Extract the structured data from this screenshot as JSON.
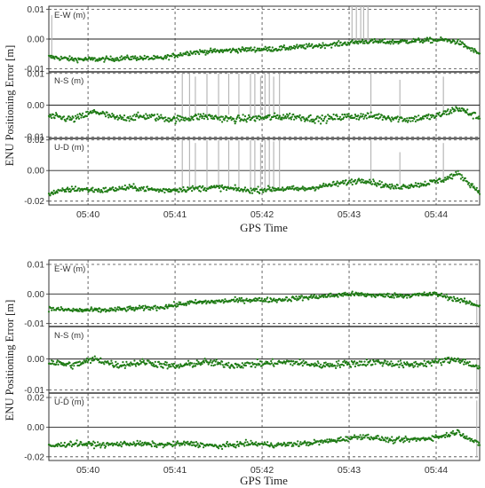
{
  "chart_data": [
    {
      "type": "scatter",
      "xlabel": "GPS Time",
      "ylabel": "ENU Positioning Error [m]",
      "x_range": [
        "05:39:33",
        "05:44:30"
      ],
      "x_ticks": [
        "05:40",
        "05:41",
        "05:42",
        "05:43",
        "05:44"
      ],
      "grid": "dashed",
      "colors": {
        "points": "#1e7a14",
        "outliers": "#b8b8b8"
      },
      "panels": [
        {
          "label": "E-W (m)",
          "ylim": [
            -0.011,
            0.011
          ],
          "y_ticks": [
            "0.01",
            "0.00",
            "-0.01"
          ],
          "trend": {
            "t": [
              "05:39:33",
              "05:39:50",
              "05:40:10",
              "05:40:30",
              "05:40:50",
              "05:41:10",
              "05:41:30",
              "05:41:50",
              "05:42:10",
              "05:42:30",
              "05:42:50",
              "05:43:10",
              "05:43:30",
              "05:43:50",
              "05:44:05",
              "05:44:15",
              "05:44:30"
            ],
            "value": [
              -0.006,
              -0.0068,
              -0.0068,
              -0.0063,
              -0.0065,
              -0.0045,
              -0.004,
              -0.0035,
              -0.0033,
              -0.0025,
              -0.0018,
              -0.0008,
              -0.001,
              -0.0005,
              -0.0003,
              -0.001,
              -0.005
            ]
          },
          "noise": 0.0008,
          "outliers": [
            {
              "t": "05:39:35",
              "from": -0.006,
              "to": 0.008
            },
            {
              "t": "05:43:02",
              "from": 0.0,
              "to": 0.011
            },
            {
              "t": "05:43:05",
              "from": -0.001,
              "to": 0.011
            },
            {
              "t": "05:43:08",
              "from": -0.001,
              "to": 0.011
            },
            {
              "t": "05:43:10",
              "from": 0.0,
              "to": 0.011
            },
            {
              "t": "05:43:13",
              "from": -0.001,
              "to": 0.011
            }
          ]
        },
        {
          "label": "N-S (m)",
          "ylim": [
            -0.0105,
            0.0105
          ],
          "y_ticks": [
            "0.01",
            "0.00",
            "-0.01"
          ],
          "trend": {
            "t": [
              "05:39:33",
              "05:39:50",
              "05:40:05",
              "05:40:20",
              "05:40:40",
              "05:41:00",
              "05:41:20",
              "05:41:40",
              "05:42:00",
              "05:42:20",
              "05:42:40",
              "05:43:00",
              "05:43:20",
              "05:43:40",
              "05:44:00",
              "05:44:15",
              "05:44:30"
            ],
            "value": [
              -0.0035,
              -0.0045,
              -0.002,
              -0.0042,
              -0.0035,
              -0.0045,
              -0.0035,
              -0.0045,
              -0.004,
              -0.0035,
              -0.0045,
              -0.0035,
              -0.0035,
              -0.0045,
              -0.0035,
              -0.001,
              -0.004
            ]
          },
          "noise": 0.0011,
          "outliers": [
            {
              "t": "05:41:05",
              "from": -0.004,
              "to": 0.01
            },
            {
              "t": "05:41:10",
              "from": -0.004,
              "to": 0.01
            },
            {
              "t": "05:41:14",
              "from": -0.003,
              "to": 0.009
            },
            {
              "t": "05:41:22",
              "from": -0.004,
              "to": 0.01
            },
            {
              "t": "05:41:30",
              "from": -0.004,
              "to": 0.01
            },
            {
              "t": "05:41:37",
              "from": -0.003,
              "to": 0.01
            },
            {
              "t": "05:41:44",
              "from": -0.004,
              "to": 0.01
            },
            {
              "t": "05:41:52",
              "from": -0.004,
              "to": 0.01
            },
            {
              "t": "05:41:55",
              "from": -0.004,
              "to": 0.01
            },
            {
              "t": "05:41:59",
              "from": -0.003,
              "to": 0.009
            },
            {
              "t": "05:42:02",
              "from": -0.004,
              "to": 0.01
            },
            {
              "t": "05:42:05",
              "from": -0.004,
              "to": 0.01
            },
            {
              "t": "05:42:08",
              "from": -0.004,
              "to": 0.009
            },
            {
              "t": "05:42:12",
              "from": -0.004,
              "to": 0.01
            },
            {
              "t": "05:43:15",
              "from": -0.004,
              "to": 0.01
            },
            {
              "t": "05:43:35",
              "from": -0.004,
              "to": 0.008
            },
            {
              "t": "05:44:05",
              "from": -0.003,
              "to": 0.009
            }
          ]
        },
        {
          "label": "U-D (m)",
          "ylim": [
            -0.0225,
            0.021
          ],
          "y_ticks": [
            "0.02",
            "0.00",
            "-0.02"
          ],
          "trend": {
            "t": [
              "05:39:33",
              "05:39:50",
              "05:40:10",
              "05:40:30",
              "05:40:50",
              "05:41:10",
              "05:41:30",
              "05:41:50",
              "05:42:10",
              "05:42:30",
              "05:42:50",
              "05:43:10",
              "05:43:30",
              "05:43:50",
              "05:44:05",
              "05:44:15",
              "05:44:30"
            ],
            "value": [
              -0.015,
              -0.012,
              -0.013,
              -0.011,
              -0.013,
              -0.012,
              -0.011,
              -0.013,
              -0.012,
              -0.012,
              -0.009,
              -0.006,
              -0.011,
              -0.009,
              -0.006,
              -0.002,
              -0.014
            ]
          },
          "noise": 0.0018,
          "outliers": [
            {
              "t": "05:41:05",
              "from": -0.012,
              "to": 0.02
            },
            {
              "t": "05:41:10",
              "from": -0.012,
              "to": 0.02
            },
            {
              "t": "05:41:14",
              "from": -0.011,
              "to": 0.018
            },
            {
              "t": "05:41:22",
              "from": -0.012,
              "to": 0.02
            },
            {
              "t": "05:41:30",
              "from": -0.012,
              "to": 0.02
            },
            {
              "t": "05:41:37",
              "from": -0.011,
              "to": 0.02
            },
            {
              "t": "05:41:44",
              "from": -0.012,
              "to": 0.02
            },
            {
              "t": "05:41:52",
              "from": -0.012,
              "to": 0.02
            },
            {
              "t": "05:41:55",
              "from": -0.012,
              "to": 0.02
            },
            {
              "t": "05:41:59",
              "from": -0.011,
              "to": 0.018
            },
            {
              "t": "05:42:02",
              "from": -0.012,
              "to": 0.02
            },
            {
              "t": "05:42:05",
              "from": -0.012,
              "to": 0.02
            },
            {
              "t": "05:42:08",
              "from": -0.012,
              "to": 0.019
            },
            {
              "t": "05:42:12",
              "from": -0.012,
              "to": 0.02
            },
            {
              "t": "05:43:15",
              "from": -0.008,
              "to": 0.02
            },
            {
              "t": "05:43:35",
              "from": -0.009,
              "to": 0.012
            },
            {
              "t": "05:44:05",
              "from": -0.006,
              "to": 0.018
            }
          ]
        }
      ]
    },
    {
      "type": "scatter",
      "xlabel": "GPS Time",
      "ylabel": "ENU Positioning Error [m]",
      "x_range": [
        "05:39:33",
        "05:44:30"
      ],
      "x_ticks": [
        "05:40",
        "05:41",
        "05:42",
        "05:43",
        "05:44"
      ],
      "grid": "dashed",
      "colors": {
        "points": "#1e7a14",
        "outliers": "#b8b8b8"
      },
      "panels": [
        {
          "label": "E-W (m)",
          "ylim": [
            -0.011,
            0.0115
          ],
          "y_ticks": [
            "0.01",
            "0.00",
            "-0.01"
          ],
          "trend": {
            "t": [
              "05:39:33",
              "05:39:50",
              "05:40:10",
              "05:40:30",
              "05:40:50",
              "05:41:10",
              "05:41:30",
              "05:41:50",
              "05:42:10",
              "05:42:30",
              "05:42:50",
              "05:43:00",
              "05:43:20",
              "05:43:40",
              "05:44:00",
              "05:44:15",
              "05:44:30"
            ],
            "value": [
              -0.005,
              -0.0055,
              -0.0055,
              -0.005,
              -0.0045,
              -0.003,
              -0.0025,
              -0.002,
              -0.002,
              -0.0012,
              -0.0005,
              0.0,
              -0.0005,
              -0.0005,
              0.0,
              -0.002,
              -0.004
            ]
          },
          "noise": 0.0008,
          "outliers": [
            {
              "t": "05:44:28",
              "from": -0.011,
              "to": -0.002
            }
          ]
        },
        {
          "label": "N-S (m)",
          "ylim": [
            -0.011,
            0.0105
          ],
          "y_ticks": [
            "0.00",
            "-0.01"
          ],
          "trend": {
            "t": [
              "05:39:33",
              "05:39:50",
              "05:40:05",
              "05:40:20",
              "05:40:40",
              "05:41:00",
              "05:41:20",
              "05:41:40",
              "05:42:00",
              "05:42:20",
              "05:42:40",
              "05:43:00",
              "05:43:20",
              "05:43:40",
              "05:44:00",
              "05:44:15",
              "05:44:30"
            ],
            "value": [
              -0.001,
              -0.002,
              0.0,
              -0.002,
              -0.001,
              -0.0025,
              -0.001,
              -0.002,
              -0.0015,
              -0.001,
              -0.002,
              -0.0015,
              -0.001,
              -0.002,
              -0.001,
              0.0,
              -0.003
            ]
          },
          "noise": 0.0011,
          "outliers": [
            {
              "t": "05:44:28",
              "from": -0.011,
              "to": 0.0
            }
          ]
        },
        {
          "label": "U-D (m)",
          "ylim": [
            -0.0225,
            0.023
          ],
          "y_ticks": [
            "0.02",
            "0.00",
            "-0.02"
          ],
          "trend": {
            "t": [
              "05:39:33",
              "05:39:50",
              "05:40:10",
              "05:40:30",
              "05:40:50",
              "05:41:10",
              "05:41:30",
              "05:41:50",
              "05:42:10",
              "05:42:30",
              "05:42:50",
              "05:43:10",
              "05:43:30",
              "05:43:50",
              "05:44:05",
              "05:44:15",
              "05:44:30"
            ],
            "value": [
              -0.013,
              -0.011,
              -0.012,
              -0.011,
              -0.012,
              -0.011,
              -0.013,
              -0.011,
              -0.012,
              -0.011,
              -0.009,
              -0.006,
              -0.009,
              -0.008,
              -0.006,
              -0.003,
              -0.012
            ]
          },
          "noise": 0.0017,
          "outliers": [
            {
              "t": "05:44:28",
              "from": -0.02,
              "to": 0.018
            }
          ]
        }
      ]
    }
  ]
}
